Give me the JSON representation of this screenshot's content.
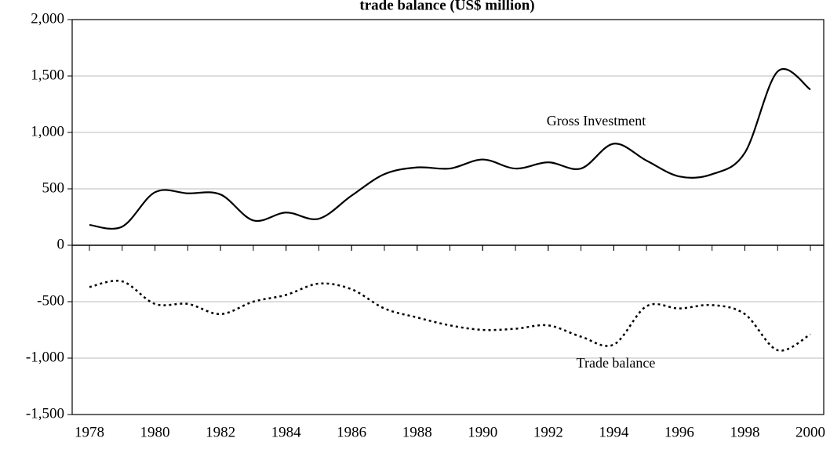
{
  "chart_data": {
    "type": "line",
    "title": "trade balance (US$ million)",
    "x": [
      1978,
      1979,
      1980,
      1981,
      1982,
      1983,
      1984,
      1985,
      1986,
      1987,
      1988,
      1989,
      1990,
      1991,
      1992,
      1993,
      1994,
      1995,
      1996,
      1997,
      1998,
      1999,
      2000
    ],
    "series": [
      {
        "name": "Gross Investment",
        "color": "#000000",
        "dash": "solid",
        "values": [
          180,
          165,
          470,
          460,
          450,
          220,
          290,
          235,
          440,
          630,
          690,
          680,
          760,
          680,
          735,
          680,
          900,
          750,
          610,
          630,
          820,
          1540,
          1380
        ]
      },
      {
        "name": "Trade balance",
        "color": "#000000",
        "dash": "dotted",
        "values": [
          -370,
          -320,
          -520,
          -520,
          -610,
          -500,
          -440,
          -340,
          -390,
          -560,
          -640,
          -710,
          -750,
          -740,
          -710,
          -810,
          -880,
          -540,
          -560,
          -530,
          -610,
          -930,
          -790
        ]
      }
    ],
    "xlim": [
      1978,
      2000
    ],
    "xticks": [
      1978,
      1980,
      1982,
      1984,
      1986,
      1988,
      1990,
      1992,
      1994,
      1996,
      1998,
      2000
    ],
    "ylim": [
      -1500,
      2000
    ],
    "yticks": [
      {
        "value": -1500,
        "label": "-1,500"
      },
      {
        "value": -1000,
        "label": "-1,000"
      },
      -500,
      0,
      500,
      {
        "value": 1000,
        "label": "1,000"
      },
      {
        "value": 1500,
        "label": "1,500"
      },
      {
        "value": 2000,
        "label": "2,000"
      }
    ],
    "grid": true
  }
}
